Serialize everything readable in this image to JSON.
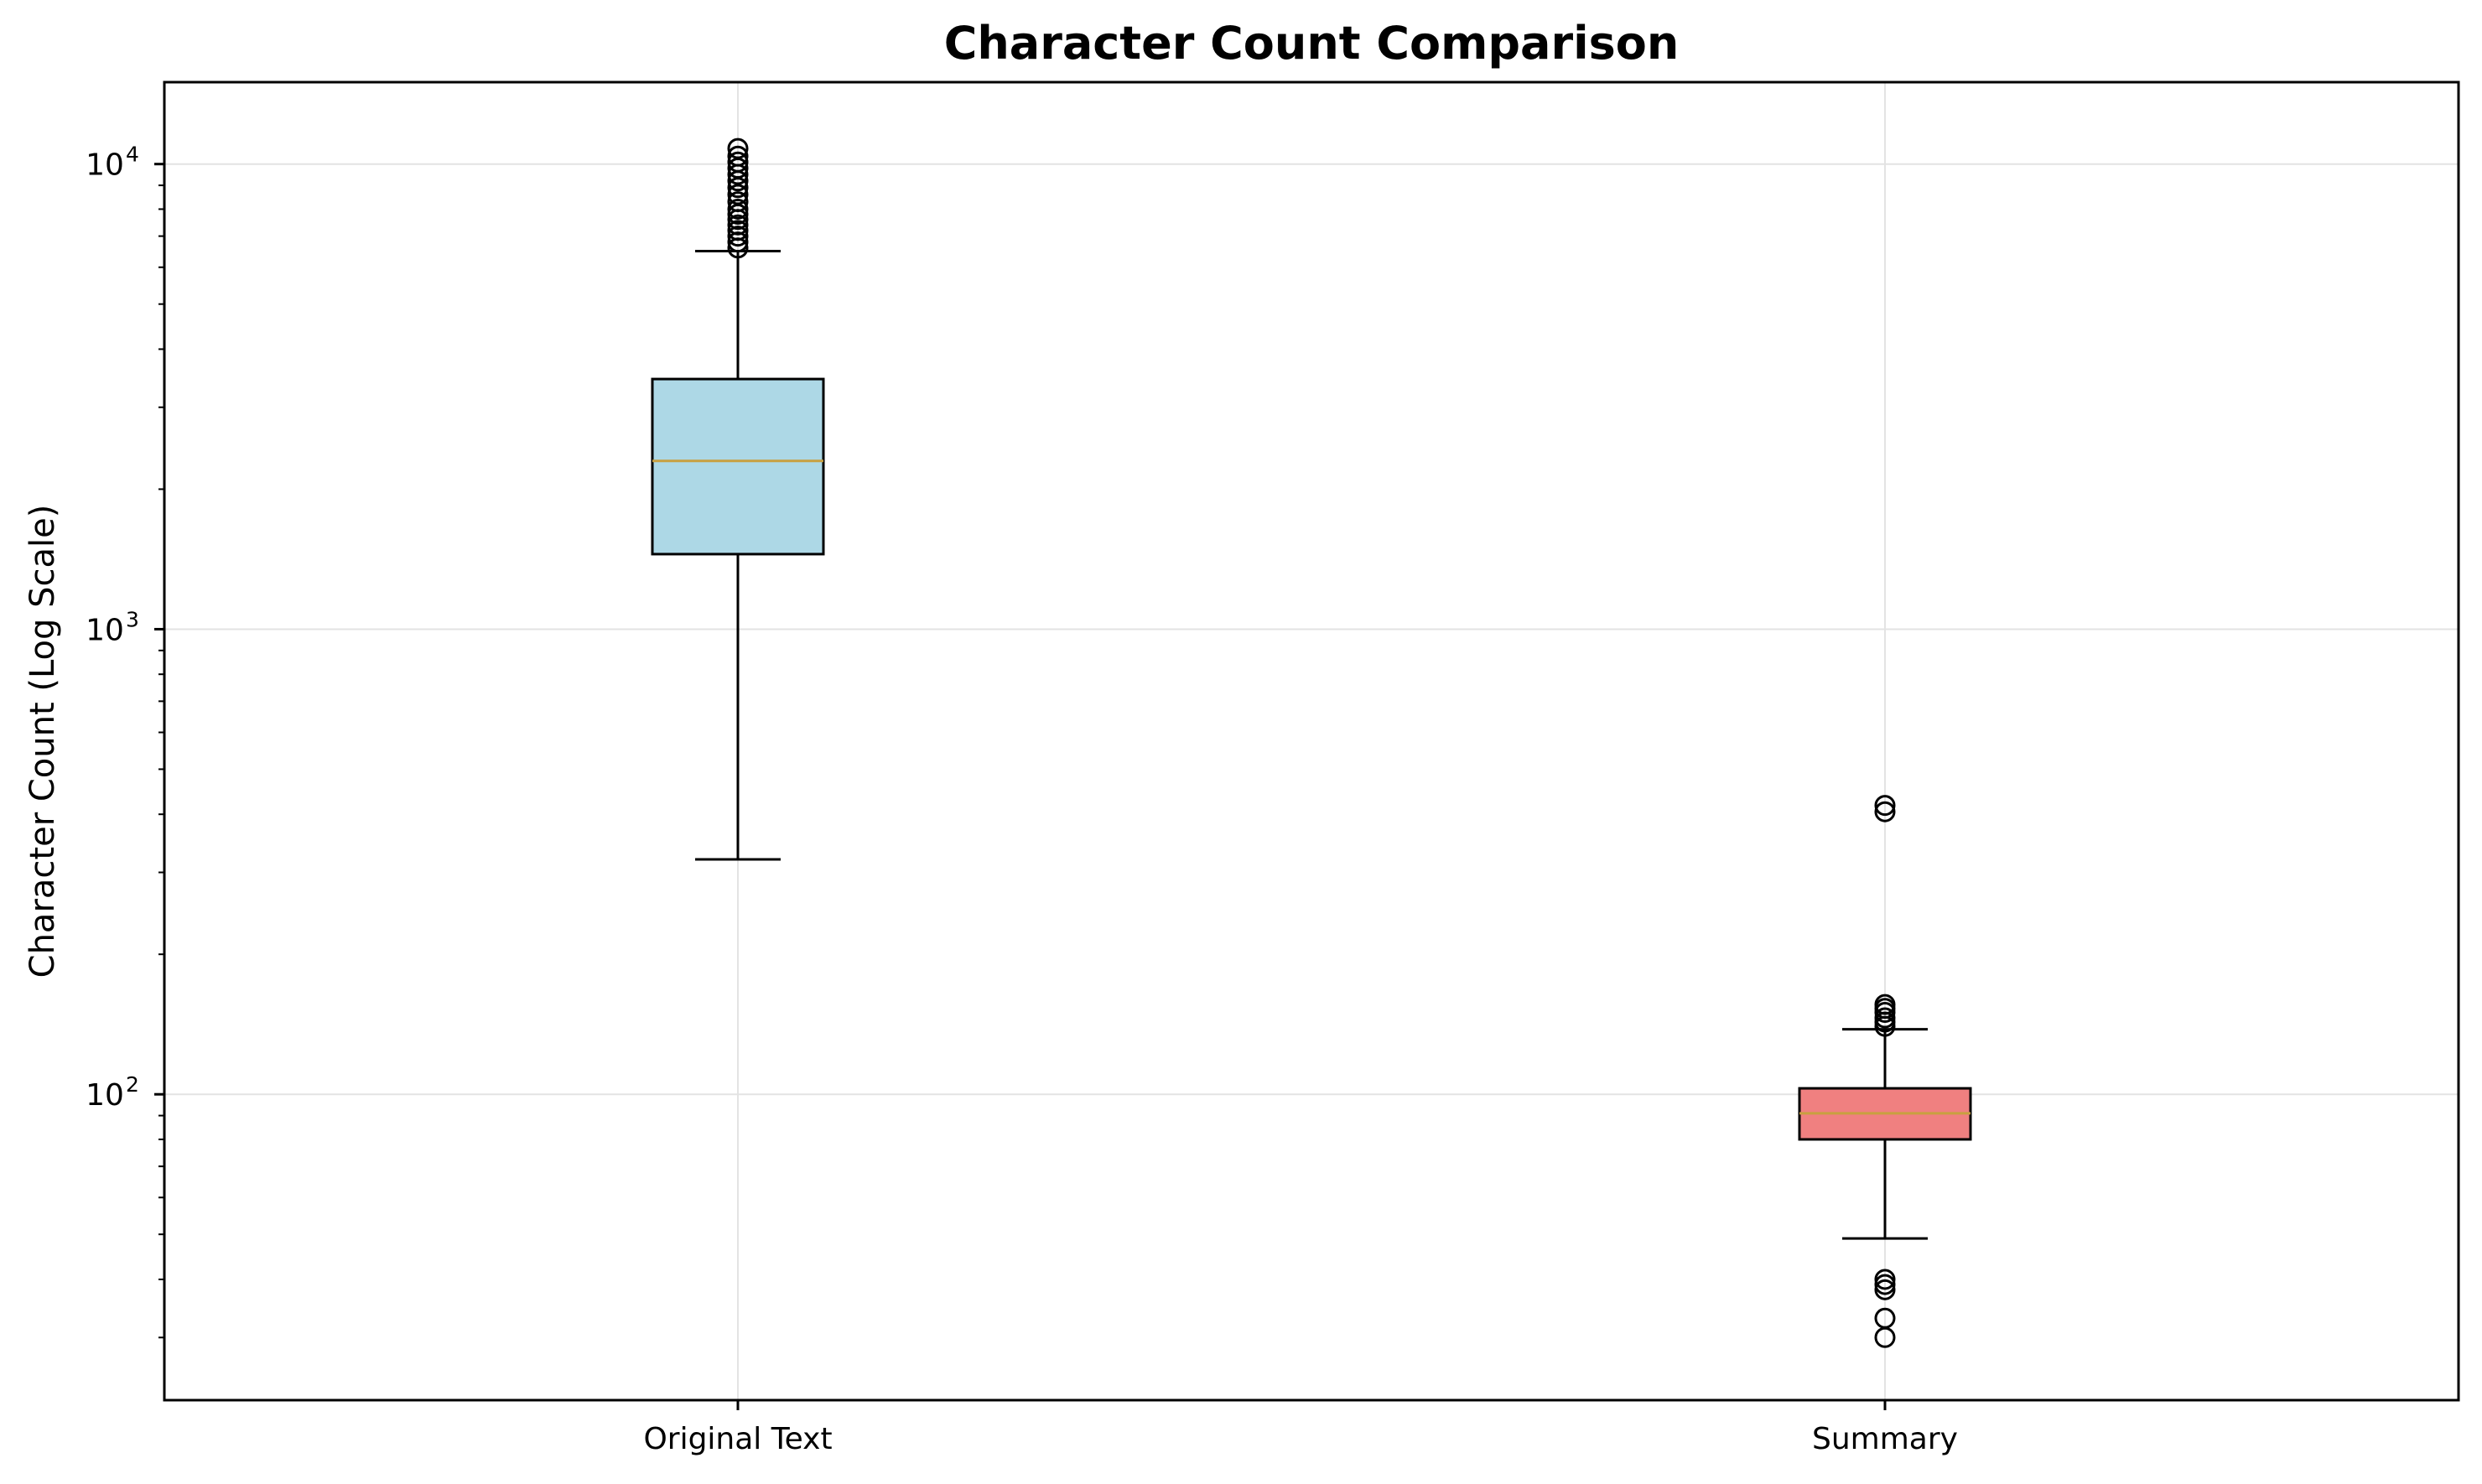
{
  "chart_data": {
    "type": "box",
    "title": "Character Count Comparison",
    "ylabel": "Character Count (Log Scale)",
    "xlabel": "",
    "yscale": "log",
    "ylim": [
      22,
      15000
    ],
    "grid": true,
    "categories": [
      "Original Text",
      "Summary"
    ],
    "yticks": [
      {
        "value": 100,
        "base": "10",
        "exp": "2"
      },
      {
        "value": 1000,
        "base": "10",
        "exp": "3"
      },
      {
        "value": 10000,
        "base": "10",
        "exp": "4"
      }
    ],
    "boxes": [
      {
        "name": "Original Text",
        "color": "#add8e6",
        "whisker_low": 320,
        "q1": 1450,
        "median": 2300,
        "q3": 3450,
        "whisker_high": 6500,
        "outliers": [
          6600,
          6800,
          7000,
          7200,
          7400,
          7600,
          7800,
          8000,
          8300,
          8600,
          8900,
          9200,
          9500,
          9800,
          10100,
          10400,
          10800
        ]
      },
      {
        "name": "Summary",
        "color": "#f08080",
        "whisker_low": 49,
        "q1": 80,
        "median": 91,
        "q3": 103,
        "whisker_high": 138,
        "outliers": [
          30,
          33,
          38,
          39,
          40,
          140,
          143,
          146,
          150,
          153,
          156,
          405,
          418
        ]
      }
    ],
    "median_color": "#c8a040"
  }
}
